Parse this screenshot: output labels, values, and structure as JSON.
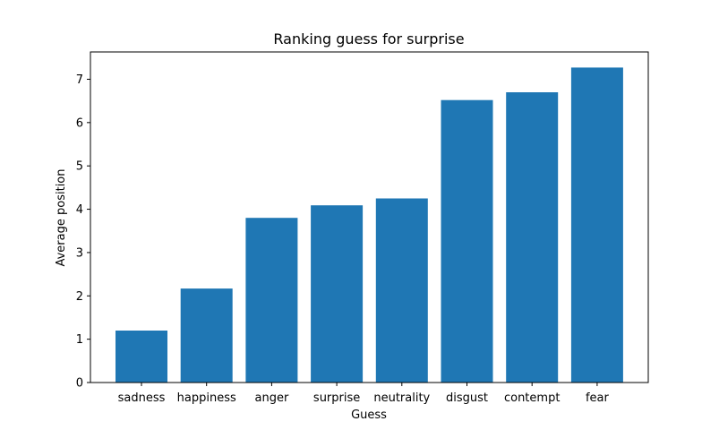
{
  "chart_data": {
    "type": "bar",
    "title": "Ranking guess for surprise",
    "xlabel": "Guess",
    "ylabel": "Average position",
    "categories": [
      "sadness",
      "happiness",
      "anger",
      "surprise",
      "neutrality",
      "disgust",
      "contempt",
      "fear"
    ],
    "values": [
      1.2,
      2.17,
      3.8,
      4.09,
      4.25,
      6.52,
      6.7,
      7.27
    ],
    "ylim": [
      0,
      7.63
    ],
    "yticks": [
      0,
      1,
      2,
      3,
      4,
      5,
      6,
      7
    ],
    "grid": false,
    "legend": "none",
    "bar_color": "#1f77b4"
  }
}
